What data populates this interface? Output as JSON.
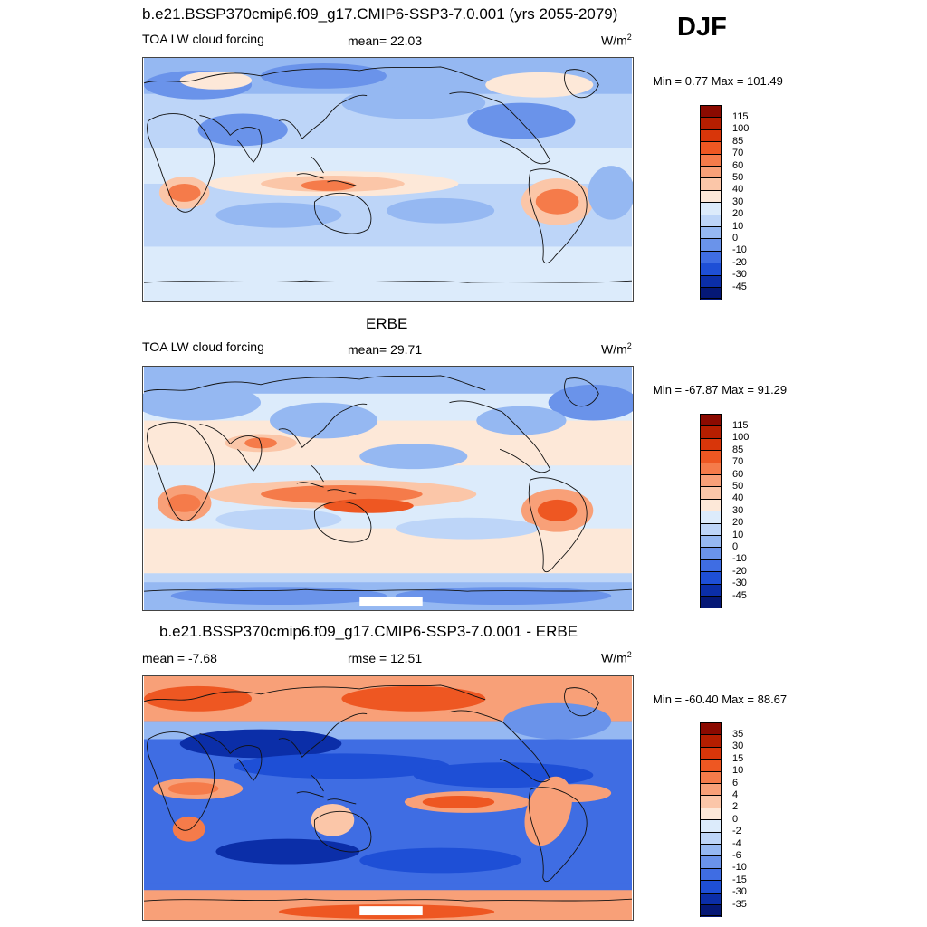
{
  "season": "DJF",
  "panels": [
    {
      "title": "b.e21.BSSP370cmip6.f09_g17.CMIP6-SSP3-7.0.001 (yrs 2055-2079)",
      "left_label": "TOA LW cloud forcing",
      "center_label": "mean=  22.03",
      "units": "W/m",
      "units_exp": "2",
      "stats": "Min =   0.77 Max = 101.49",
      "levels": [
        "115",
        "100",
        "85",
        "70",
        "60",
        "50",
        "40",
        "30",
        "20",
        "10",
        "0",
        "-10",
        "-20",
        "-30",
        "-45"
      ]
    },
    {
      "title": "ERBE",
      "left_label": "TOA LW cloud forcing",
      "center_label": "mean=  29.71",
      "units": "W/m",
      "units_exp": "2",
      "stats": "Min = -67.87 Max =  91.29",
      "levels": [
        "115",
        "100",
        "85",
        "70",
        "60",
        "50",
        "40",
        "30",
        "20",
        "10",
        "0",
        "-10",
        "-20",
        "-30",
        "-45"
      ]
    },
    {
      "title": "b.e21.BSSP370cmip6.f09_g17.CMIP6-SSP3-7.0.001 - ERBE",
      "left_label": "mean =  -7.68",
      "center_label": "rmse =  12.51",
      "units": "W/m",
      "units_exp": "2",
      "stats": "Min = -60.40 Max =  88.67",
      "levels": [
        "35",
        "30",
        "15",
        "10",
        "6",
        "4",
        "2",
        "0",
        "-2",
        "-4",
        "-6",
        "-10",
        "-15",
        "-30",
        "-35"
      ]
    }
  ],
  "colors": {
    "scale": [
      "#8b0a00",
      "#b51e00",
      "#d8360a",
      "#ee5722",
      "#f57b4a",
      "#f8a078",
      "#fbc6a8",
      "#fde8d8",
      "#dcebfb",
      "#bdd5f8",
      "#95b8f2",
      "#6a93ea",
      "#3f6de3",
      "#1e4fd6",
      "#0b2ea8",
      "#051876"
    ]
  },
  "chart_data": [
    {
      "type": "heatmap",
      "title": "b.e21.BSSP370cmip6.f09_g17.CMIP6-SSP3-7.0.001 (yrs 2055-2079)",
      "subtitle": "TOA LW cloud forcing",
      "units": "W/m2",
      "mean": 22.03,
      "min": 0.77,
      "max": 101.49,
      "contour_levels": [
        -45,
        -30,
        -20,
        -10,
        0,
        10,
        20,
        30,
        40,
        50,
        60,
        70,
        85,
        100,
        115
      ],
      "season": "DJF"
    },
    {
      "type": "heatmap",
      "title": "ERBE",
      "subtitle": "TOA LW cloud forcing",
      "units": "W/m2",
      "mean": 29.71,
      "min": -67.87,
      "max": 91.29,
      "contour_levels": [
        -45,
        -30,
        -20,
        -10,
        0,
        10,
        20,
        30,
        40,
        50,
        60,
        70,
        85,
        100,
        115
      ],
      "season": "DJF"
    },
    {
      "type": "heatmap",
      "title": "b.e21.BSSP370cmip6.f09_g17.CMIP6-SSP3-7.0.001 - ERBE",
      "units": "W/m2",
      "mean": -7.68,
      "rmse": 12.51,
      "min": -60.4,
      "max": 88.67,
      "contour_levels": [
        -35,
        -30,
        -15,
        -10,
        -6,
        -4,
        -2,
        0,
        2,
        4,
        6,
        10,
        15,
        30,
        35
      ],
      "season": "DJF"
    }
  ]
}
